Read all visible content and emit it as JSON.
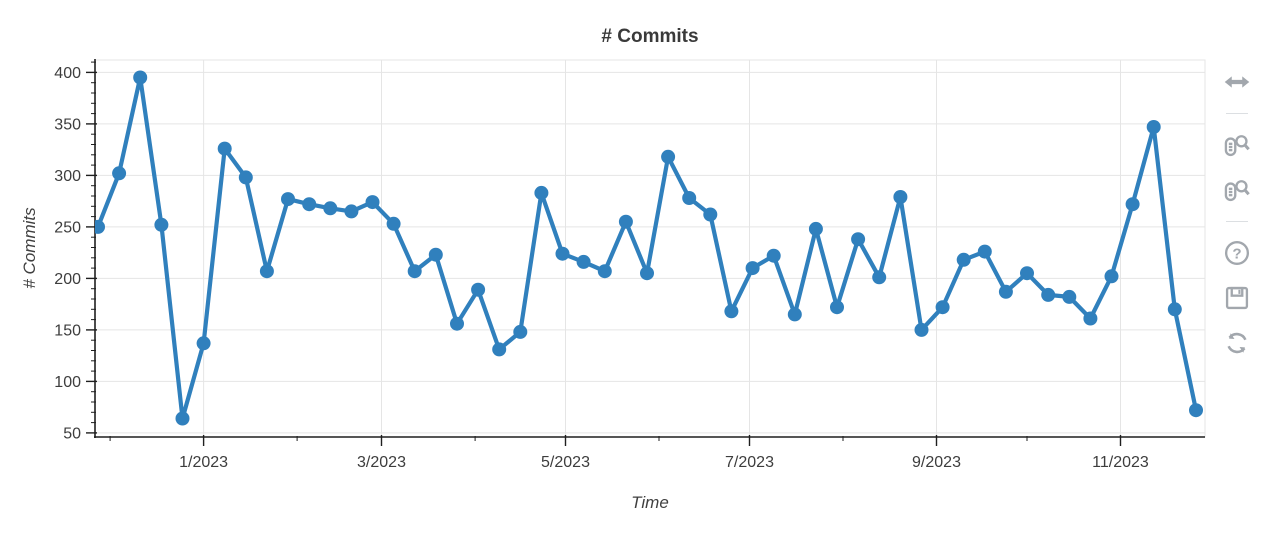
{
  "title": "# Commits",
  "chart_data": {
    "type": "line",
    "title": "# Commits",
    "xlabel": "Time",
    "ylabel": "# Commits",
    "series_name": "# Commits",
    "x": [
      "2022-11-27",
      "2022-12-04",
      "2022-12-11",
      "2022-12-18",
      "2022-12-25",
      "2023-01-01",
      "2023-01-08",
      "2023-01-15",
      "2023-01-22",
      "2023-01-29",
      "2023-02-05",
      "2023-02-12",
      "2023-02-19",
      "2023-02-26",
      "2023-03-05",
      "2023-03-12",
      "2023-03-19",
      "2023-03-26",
      "2023-04-02",
      "2023-04-09",
      "2023-04-16",
      "2023-04-23",
      "2023-04-30",
      "2023-05-07",
      "2023-05-14",
      "2023-05-21",
      "2023-05-28",
      "2023-06-04",
      "2023-06-11",
      "2023-06-18",
      "2023-06-25",
      "2023-07-02",
      "2023-07-09",
      "2023-07-16",
      "2023-07-23",
      "2023-07-30",
      "2023-08-06",
      "2023-08-13",
      "2023-08-20",
      "2023-08-27",
      "2023-09-03",
      "2023-09-10",
      "2023-09-17",
      "2023-09-24",
      "2023-10-01",
      "2023-10-08",
      "2023-10-15",
      "2023-10-22",
      "2023-10-29",
      "2023-11-05",
      "2023-11-12",
      "2023-11-19",
      "2023-11-26"
    ],
    "values": [
      250,
      302,
      395,
      252,
      64,
      137,
      326,
      298,
      207,
      277,
      272,
      268,
      265,
      274,
      253,
      207,
      223,
      156,
      189,
      131,
      148,
      283,
      224,
      216,
      207,
      255,
      205,
      318,
      278,
      262,
      168,
      210,
      222,
      165,
      248,
      172,
      238,
      201,
      279,
      150,
      172,
      218,
      226,
      187,
      205,
      184,
      182,
      161,
      202,
      272,
      347,
      170,
      72
    ],
    "x_tick_labels": [
      "1/2023",
      "3/2023",
      "5/2023",
      "7/2023",
      "9/2023",
      "11/2023"
    ],
    "x_tick_dates": [
      "2023-01-01",
      "2023-03-01",
      "2023-05-01",
      "2023-07-01",
      "2023-09-01",
      "2023-11-01"
    ],
    "x_minor_tick_dates": [
      "2022-12-01",
      "2023-02-01",
      "2023-04-01",
      "2023-06-01",
      "2023-08-01",
      "2023-10-01"
    ],
    "y_ticks": [
      50,
      100,
      150,
      200,
      250,
      300,
      350,
      400
    ],
    "x_range": [
      "2022-11-26",
      "2023-11-29"
    ],
    "y_range": [
      46,
      412
    ],
    "grid": true,
    "legend": null,
    "line_color": "#3080bd",
    "marker": "circle"
  },
  "toolbar": {
    "tools": [
      "pan-x",
      "wheel-zoom-x",
      "wheel-zoom-y",
      "help",
      "save",
      "reset"
    ],
    "icon_color": "#a2a7ad"
  },
  "colors": {
    "accent_blue": "#3080bd",
    "grid": "#e5e5e5",
    "axis": "#1f1f1f",
    "tick_label": "#3d3d3d"
  }
}
